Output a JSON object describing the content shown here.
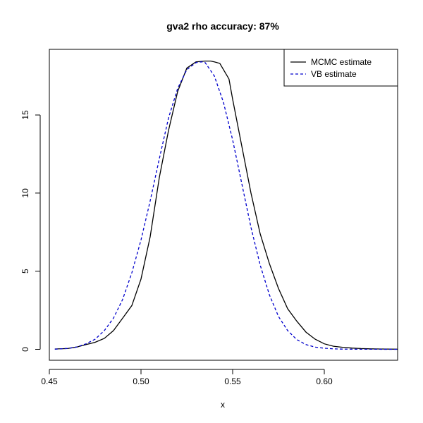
{
  "chart_data": {
    "type": "line",
    "title": "gva2 rho accuracy: 87%",
    "xlabel": "x",
    "ylabel": "",
    "xlim": [
      0.45,
      0.64
    ],
    "ylim": [
      -0.7,
      19.2
    ],
    "x_ticks": [
      0.45,
      0.5,
      0.55,
      0.6
    ],
    "x_tick_labels": [
      "0.45",
      "0.50",
      "0.55",
      "0.60"
    ],
    "y_ticks": [
      0,
      5,
      10,
      15
    ],
    "y_tick_labels": [
      "0",
      "5",
      "10",
      "15"
    ],
    "grid": false,
    "legend_position": "top-right",
    "series": [
      {
        "name": "MCMC estimate",
        "color": "#000000",
        "dash": "solid",
        "x": [
          0.453,
          0.46,
          0.465,
          0.47,
          0.475,
          0.48,
          0.485,
          0.49,
          0.495,
          0.5,
          0.505,
          0.51,
          0.515,
          0.52,
          0.525,
          0.53,
          0.535,
          0.538,
          0.54,
          0.543,
          0.545,
          0.548,
          0.55,
          0.555,
          0.56,
          0.565,
          0.57,
          0.575,
          0.58,
          0.585,
          0.59,
          0.595,
          0.6,
          0.605,
          0.61,
          0.615,
          0.62,
          0.625,
          0.63,
          0.64
        ],
        "y": [
          0.02,
          0.05,
          0.15,
          0.3,
          0.45,
          0.7,
          1.2,
          2.0,
          2.8,
          4.5,
          7.2,
          11.0,
          14.0,
          16.5,
          18.0,
          18.4,
          18.45,
          18.45,
          18.4,
          18.3,
          17.9,
          17.3,
          16.0,
          13.0,
          10.0,
          7.4,
          5.5,
          3.9,
          2.6,
          1.8,
          1.1,
          0.65,
          0.35,
          0.2,
          0.13,
          0.08,
          0.05,
          0.03,
          0.02,
          0.01
        ]
      },
      {
        "name": "VB estimate",
        "color": "#0000cc",
        "dash": "dashed",
        "x": [
          0.453,
          0.46,
          0.465,
          0.47,
          0.475,
          0.48,
          0.485,
          0.49,
          0.495,
          0.5,
          0.505,
          0.51,
          0.515,
          0.52,
          0.525,
          0.53,
          0.533,
          0.535,
          0.54,
          0.545,
          0.55,
          0.555,
          0.56,
          0.565,
          0.57,
          0.575,
          0.58,
          0.585,
          0.59,
          0.595,
          0.6,
          0.605,
          0.61,
          0.62,
          0.63,
          0.64
        ],
        "y": [
          0.01,
          0.06,
          0.15,
          0.35,
          0.65,
          1.2,
          2.0,
          3.2,
          4.9,
          7.0,
          9.5,
          12.2,
          14.8,
          16.7,
          17.9,
          18.35,
          18.4,
          18.35,
          17.5,
          15.8,
          13.4,
          10.6,
          7.8,
          5.4,
          3.5,
          2.1,
          1.2,
          0.62,
          0.3,
          0.14,
          0.07,
          0.03,
          0.015,
          0.005,
          0.002,
          0.001
        ]
      }
    ]
  }
}
